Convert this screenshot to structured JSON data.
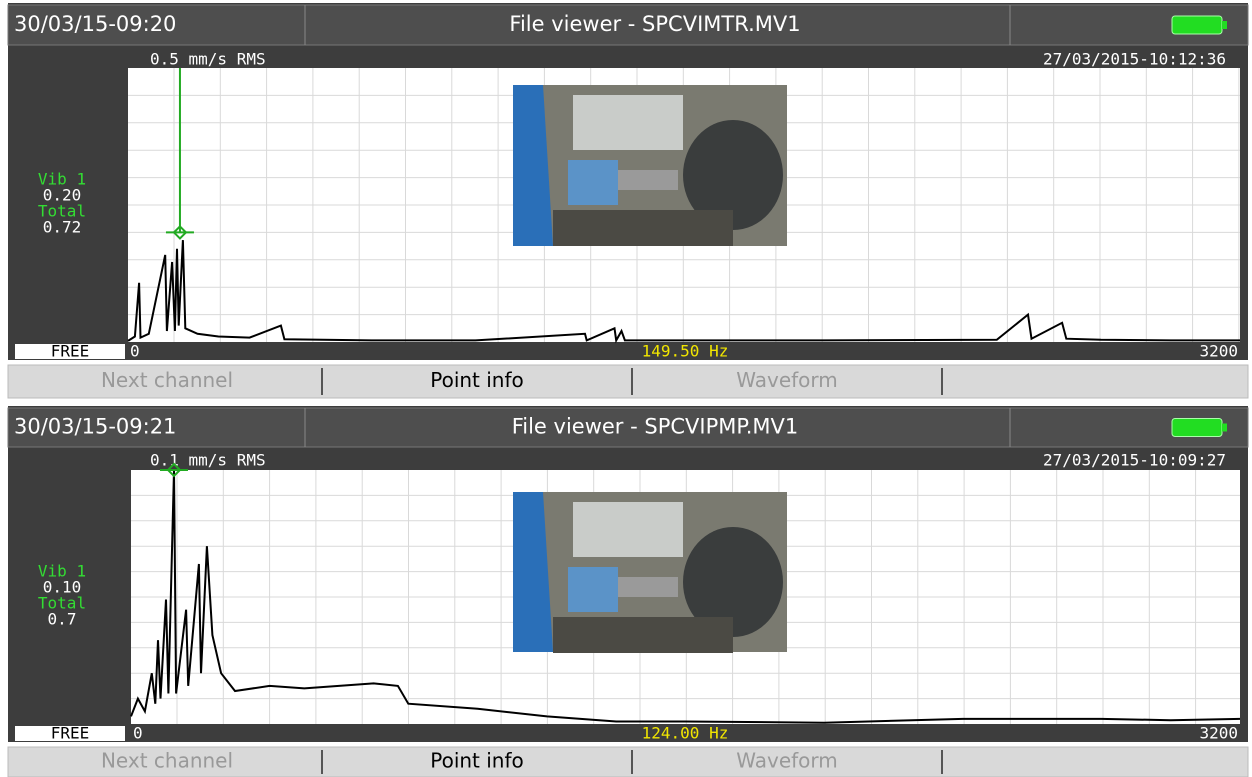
{
  "panels": [
    {
      "timestamp": "30/03/15-09:20",
      "title": "File viewer - SPCVIMTR.MV1",
      "scale_label": "0.5 mm/s RMS",
      "record_date": "27/03/2015-10:12:36",
      "channel_label": "Vib 1",
      "channel_value": {
        "value": 0.2,
        "label": "0.20"
      },
      "total_label": "Total",
      "total_value": 0.72,
      "mode": "FREE",
      "xlim": [
        0,
        3200
      ],
      "ylim": [
        0,
        0.5
      ],
      "cursor": {
        "value": 149.5,
        "label": "149.50 Hz"
      },
      "spectrum": {
        "x": [
          0,
          20,
          32,
          36,
          60,
          107,
          112,
          127,
          135,
          141,
          146,
          158,
          165,
          200,
          260,
          350,
          440,
          450,
          700,
          1000,
          1315,
          1320,
          1400,
          1405,
          1420,
          1430,
          2000,
          2500,
          2590,
          2600,
          2688,
          2700,
          2800,
          3000,
          3200
        ],
        "values": [
          0.002,
          0.01,
          0.108,
          0.008,
          0.015,
          0.159,
          0.02,
          0.146,
          0.02,
          0.17,
          0.03,
          0.186,
          0.025,
          0.015,
          0.01,
          0.008,
          0.03,
          0.005,
          0.003,
          0.003,
          0.015,
          0.003,
          0.025,
          0.003,
          0.02,
          0.003,
          0.003,
          0.004,
          0.05,
          0.006,
          0.035,
          0.006,
          0.004,
          0.003,
          0.003
        ]
      },
      "buttons": [
        "Next channel",
        "Point info",
        "Waveform"
      ]
    },
    {
      "timestamp": "30/03/15-09:21",
      "title": "File viewer - SPCVIPMP.MV1",
      "scale_label": "0.1 mm/s RMS",
      "record_date": "27/03/2015-10:09:27",
      "channel_label": "Vib 1",
      "channel_value": {
        "value": 0.1,
        "label": "0.10"
      },
      "total_label": "Total",
      "total_value": 0.7,
      "mode": "FREE",
      "xlim": [
        0,
        3200
      ],
      "ylim": [
        0,
        0.1
      ],
      "cursor": {
        "value": 124,
        "label": "124.00 Hz"
      },
      "spectrum": {
        "x": [
          0,
          20,
          40,
          60,
          70,
          78,
          85,
          101,
          108,
          124,
          130,
          159,
          165,
          196,
          202,
          219,
          235,
          260,
          300,
          400,
          500,
          600,
          700,
          770,
          800,
          1000,
          1200,
          1400,
          1600,
          2000,
          2400,
          2600,
          2800,
          3000,
          3200
        ],
        "values": [
          0.003,
          0.01,
          0.005,
          0.02,
          0.008,
          0.033,
          0.01,
          0.049,
          0.012,
          0.1,
          0.012,
          0.045,
          0.015,
          0.063,
          0.02,
          0.07,
          0.035,
          0.02,
          0.013,
          0.015,
          0.014,
          0.015,
          0.016,
          0.015,
          0.008,
          0.006,
          0.003,
          0.001,
          0.001,
          0.0005,
          0.002,
          0.002,
          0.002,
          0.0015,
          0.002
        ]
      },
      "buttons": [
        "Next channel",
        "Point info",
        "Waveform"
      ]
    }
  ]
}
